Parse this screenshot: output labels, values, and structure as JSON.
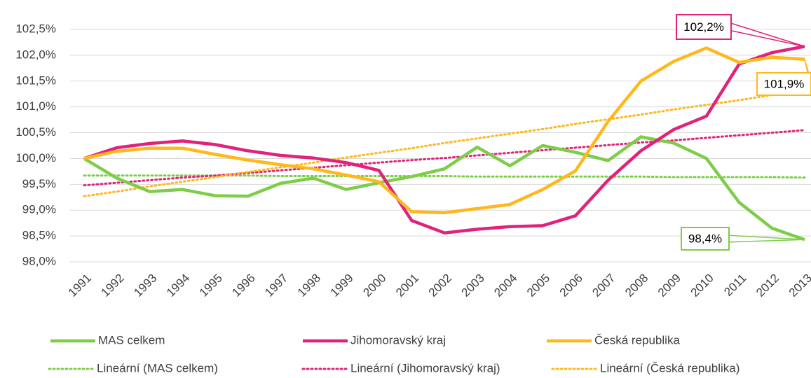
{
  "chart_data": {
    "type": "line",
    "categories": [
      "1991",
      "1992",
      "1993",
      "1994",
      "1995",
      "1996",
      "1997",
      "1998",
      "1999",
      "2000",
      "2001",
      "2002",
      "2003",
      "2004",
      "2005",
      "2006",
      "2007",
      "2008",
      "2009",
      "2010",
      "2011",
      "2012",
      "2013"
    ],
    "ylim": [
      98.0,
      102.5
    ],
    "yticks": [
      {
        "value": 98.0,
        "label": "98,0%"
      },
      {
        "value": 98.5,
        "label": "98,5%"
      },
      {
        "value": 99.0,
        "label": "99,0%"
      },
      {
        "value": 99.5,
        "label": "99,5%"
      },
      {
        "value": 100.0,
        "label": "100,0%"
      },
      {
        "value": 100.5,
        "label": "100,5%"
      },
      {
        "value": 101.0,
        "label": "101,0%"
      },
      {
        "value": 101.5,
        "label": "101,5%"
      },
      {
        "value": 102.0,
        "label": "102,0%"
      },
      {
        "value": 102.5,
        "label": "102,5%"
      }
    ],
    "grid": true,
    "legend": "bottom",
    "series": [
      {
        "name": "MAS celkem",
        "color": "#7dcd48",
        "style": "solid",
        "values": [
          100.0,
          99.62,
          99.36,
          99.4,
          99.28,
          99.27,
          99.52,
          99.62,
          99.4,
          99.53,
          99.65,
          99.8,
          100.22,
          99.86,
          100.25,
          100.12,
          99.96,
          100.42,
          100.3,
          100.0,
          99.15,
          98.65,
          98.43
        ],
        "value_labels": [
          null,
          null,
          null,
          null,
          null,
          null,
          null,
          null,
          null,
          null,
          null,
          null,
          null,
          null,
          null,
          null,
          null,
          null,
          null,
          null,
          null,
          null,
          "98,4%"
        ]
      },
      {
        "name": "Jihomoravský kraj",
        "color": "#e0237a",
        "style": "solid",
        "values": [
          100.0,
          100.21,
          100.29,
          100.34,
          100.27,
          100.15,
          100.06,
          100.01,
          99.92,
          99.77,
          98.8,
          98.56,
          98.63,
          98.68,
          98.7,
          98.89,
          99.58,
          100.15,
          100.56,
          100.82,
          101.83,
          102.05,
          102.17
        ],
        "value_labels": [
          null,
          null,
          null,
          null,
          null,
          null,
          null,
          null,
          null,
          null,
          null,
          null,
          null,
          null,
          null,
          null,
          null,
          null,
          null,
          null,
          null,
          null,
          "102,2%"
        ]
      },
      {
        "name": "Česká republika",
        "color": "#ffb81c",
        "style": "solid",
        "values": [
          100.0,
          100.14,
          100.2,
          100.2,
          100.08,
          99.97,
          99.88,
          99.8,
          99.68,
          99.55,
          98.97,
          98.95,
          99.03,
          99.11,
          99.4,
          99.76,
          100.72,
          101.5,
          101.88,
          102.14,
          101.86,
          101.96,
          101.92
        ],
        "value_labels": [
          null,
          null,
          null,
          null,
          null,
          null,
          null,
          null,
          null,
          null,
          null,
          null,
          null,
          null,
          null,
          null,
          null,
          null,
          null,
          null,
          null,
          null,
          "101,9%"
        ]
      },
      {
        "name": "Lineární (MAS celkem)",
        "color": "#7dcd48",
        "style": "dotted",
        "values": [
          99.67,
          99.67,
          99.67,
          99.67,
          99.67,
          99.67,
          99.66,
          99.66,
          99.66,
          99.66,
          99.66,
          99.66,
          99.65,
          99.65,
          99.65,
          99.65,
          99.65,
          99.65,
          99.64,
          99.64,
          99.64,
          99.64,
          99.63
        ]
      },
      {
        "name": "Lineární (Jihomoravský kraj)",
        "color": "#e0237a",
        "style": "dotted",
        "values": [
          99.48,
          99.53,
          99.58,
          99.63,
          99.67,
          99.72,
          99.77,
          99.82,
          99.87,
          99.92,
          99.97,
          100.01,
          100.06,
          100.11,
          100.16,
          100.21,
          100.26,
          100.31,
          100.35,
          100.4,
          100.45,
          100.5,
          100.55
        ]
      },
      {
        "name": "Lineární (Česká republika)",
        "color": "#ffb81c",
        "style": "dotted",
        "values": [
          99.27,
          99.36,
          99.46,
          99.55,
          99.64,
          99.74,
          99.83,
          99.92,
          100.02,
          100.11,
          100.2,
          100.3,
          100.39,
          100.48,
          100.57,
          100.67,
          100.76,
          100.85,
          100.95,
          101.04,
          101.13,
          101.23,
          101.32
        ]
      }
    ]
  }
}
